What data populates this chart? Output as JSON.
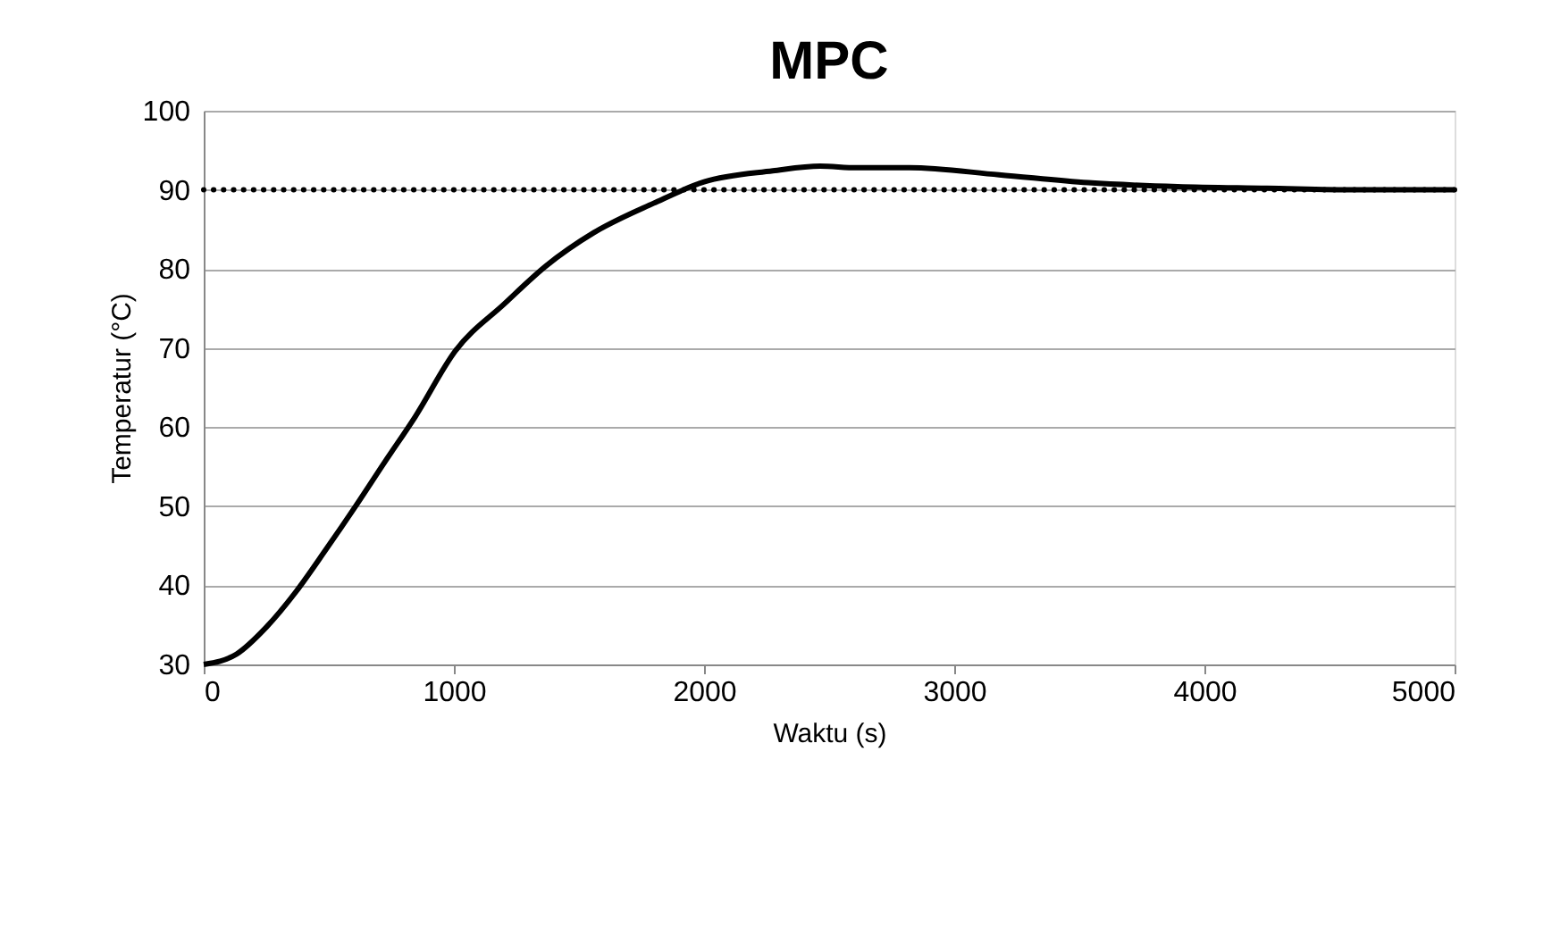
{
  "chart_data": {
    "type": "line",
    "title": "MPC",
    "xlabel": "Waktu (s)",
    "ylabel": "Temperatur (°C)",
    "x": [
      0,
      131,
      250,
      369,
      488,
      607,
      726,
      845,
      1005,
      1202,
      1369,
      1560,
      1798,
      2000,
      2275,
      2464,
      2610,
      2821,
      3179,
      3536,
      3893,
      4250,
      4607,
      5000
    ],
    "series": [
      {
        "color": "#000000",
        "values": [
          30,
          31.3,
          34.7,
          39.2,
          44.5,
          50,
          55.7,
          61.3,
          69.6,
          75.6,
          80.4,
          84.6,
          88.3,
          91,
          92.4,
          93,
          92.8,
          92.8,
          91.9,
          90.9,
          90.4,
          90.2,
          90,
          90
        ]
      }
    ],
    "xlim": [
      0,
      5000
    ],
    "xticks": [
      0,
      1000,
      2000,
      3000,
      4000,
      5000
    ],
    "ylim": [
      30,
      100
    ],
    "yticks": [
      30,
      40,
      50,
      60,
      70,
      80,
      90,
      100
    ],
    "grid": "y",
    "marker": "none",
    "line_style": "solid",
    "ref_lines": [
      {
        "axis": "y",
        "value": 90,
        "color": "#000000",
        "line_style": "dotted"
      }
    ]
  }
}
